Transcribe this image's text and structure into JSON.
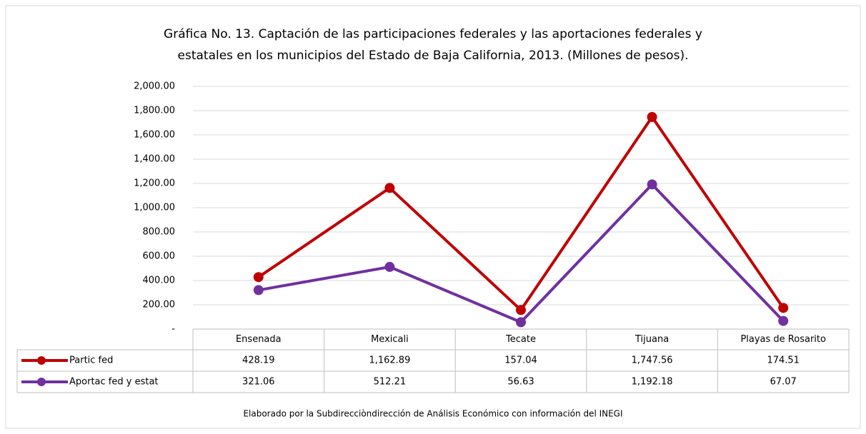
{
  "chart_data": {
    "type": "line",
    "title": [
      "Gráfica No. 13. Captación de las participaciones federales y las aportaciones federales y",
      "estatales en los municipios del Estado de Baja California, 2013. (Millones de pesos)."
    ],
    "categories": [
      "Ensenada",
      "Mexicali",
      "Tecate",
      "Tijuana",
      "Playas de Rosarito"
    ],
    "series": [
      {
        "name": "Partic fed",
        "color": "#c00000",
        "values": [
          428.19,
          1162.89,
          157.04,
          1747.56,
          174.51
        ],
        "value_labels": [
          "428.19",
          "1,162.89",
          "157.04",
          "1,747.56",
          "174.51"
        ]
      },
      {
        "name": "Aportac fed y estat",
        "color": "#7030a0",
        "values": [
          321.06,
          512.21,
          56.63,
          1192.18,
          67.07
        ],
        "value_labels": [
          "321.06",
          "512.21",
          "56.63",
          "1,192.18",
          "67.07"
        ]
      }
    ],
    "ylim": [
      0,
      2000
    ],
    "yticks": [
      {
        "value": 0,
        "label": "-"
      },
      {
        "value": 200,
        "label": "200.00"
      },
      {
        "value": 400,
        "label": "400.00"
      },
      {
        "value": 600,
        "label": "600.00"
      },
      {
        "value": 800,
        "label": "800.00"
      },
      {
        "value": 1000,
        "label": "1,000.00"
      },
      {
        "value": 1200,
        "label": "1,200.00"
      },
      {
        "value": 1400,
        "label": "1,400.00"
      },
      {
        "value": 1600,
        "label": "1,600.00"
      },
      {
        "value": 1800,
        "label": "1,800.00"
      },
      {
        "value": 2000,
        "label": "2,000.00"
      }
    ],
    "grid": true,
    "note": "Elaborado por la Subdirecciòndirección de Análisis Económico con información del INEGI"
  }
}
